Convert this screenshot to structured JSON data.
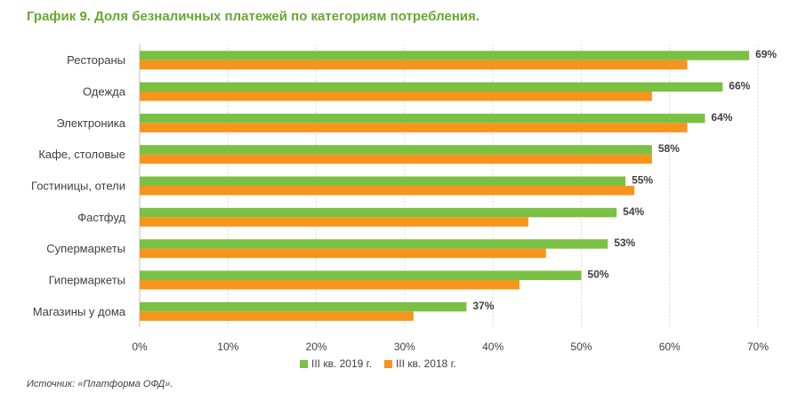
{
  "title": "График 9. Доля безналичных платежей по категориям потребления.",
  "source": "Источник: «Платформа ОФД».",
  "chart_data": {
    "type": "bar",
    "orientation": "horizontal",
    "categories": [
      "Рестораны",
      "Одежда",
      "Электроника",
      "Кафе, столовые",
      "Гостиницы, отели",
      "Фастфуд",
      "Супермаркеты",
      "Гипермаркеты",
      "Магазины у дома"
    ],
    "series": [
      {
        "name": "III кв. 2019 г.",
        "color": "#7ac143",
        "values": [
          69,
          66,
          64,
          58,
          55,
          54,
          53,
          50,
          37
        ],
        "labels": [
          "69%",
          "66%",
          "64%",
          "58%",
          "55%",
          "54%",
          "53%",
          "50%",
          "37%"
        ]
      },
      {
        "name": "III кв. 2018 г.",
        "color": "#f7941d",
        "values": [
          62,
          58,
          62,
          58,
          56,
          44,
          46,
          43,
          31
        ]
      }
    ],
    "xlim": [
      0,
      70
    ],
    "ticks": [
      "0%",
      "10%",
      "20%",
      "30%",
      "40%",
      "50%",
      "60%",
      "70%"
    ],
    "grid": true,
    "legend_position": "bottom"
  }
}
